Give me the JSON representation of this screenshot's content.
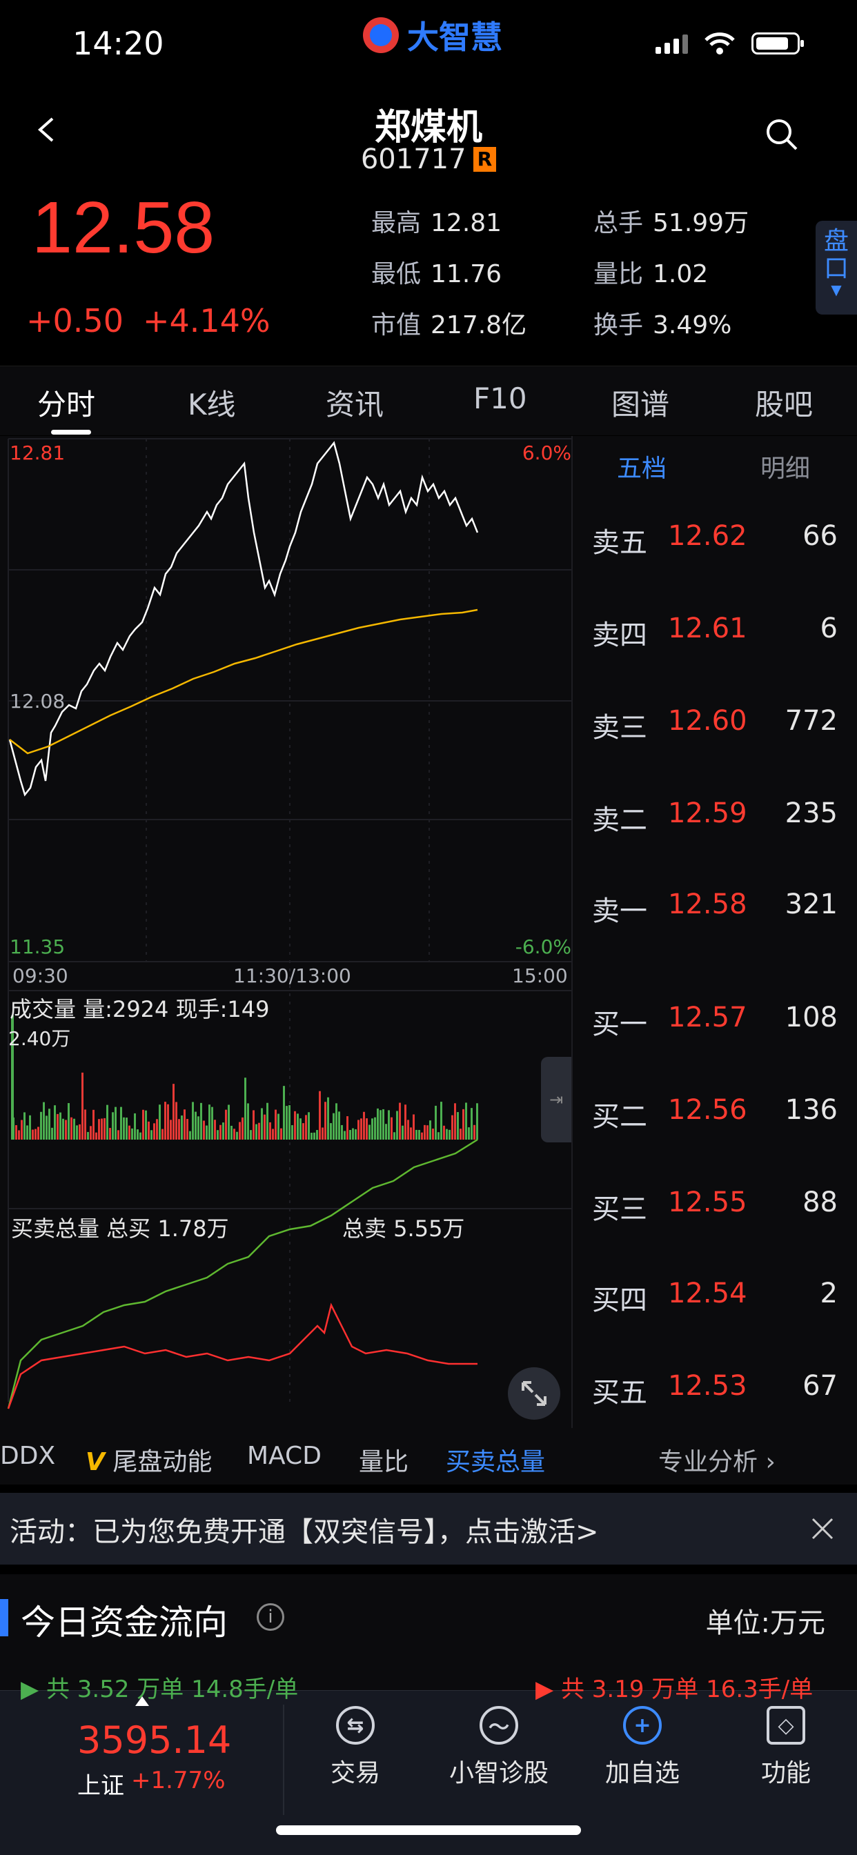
{
  "status": {
    "time": "14:20",
    "logo_text": "大智慧"
  },
  "stock": {
    "name": "郑煤机",
    "code": "601717",
    "badge": "R"
  },
  "quote": {
    "price": "12.58",
    "change": "+0.50",
    "change_pct": "+4.14%",
    "stats": [
      {
        "label": "最高",
        "value": "12.81"
      },
      {
        "label": "总手",
        "value": "51.99万"
      },
      {
        "label": "最低",
        "value": "11.76"
      },
      {
        "label": "量比",
        "value": "1.02"
      },
      {
        "label": "市值",
        "value": "217.8亿"
      },
      {
        "label": "换手",
        "value": "3.49%"
      }
    ],
    "pankou": "盘口"
  },
  "tabs": [
    "分时",
    "K线",
    "资讯",
    "F10",
    "图谱",
    "股吧"
  ],
  "chart": {
    "price_high": "12.81",
    "pct_high": "6.0%",
    "price_mid": "12.08",
    "price_low": "11.35",
    "pct_low": "-6.0%",
    "time_labels": [
      "09:30",
      "11:30/13:00",
      "15:00"
    ],
    "vol_header": "成交量 量:2924 现手:149",
    "vol_max": "2.40万",
    "bs_left": "买卖总量 总买 1.78万",
    "bs_right": "总卖 5.55万"
  },
  "orderbook": {
    "tabs": [
      "五档",
      "明细"
    ],
    "asks": [
      {
        "label": "卖五",
        "price": "12.62",
        "qty": "66"
      },
      {
        "label": "卖四",
        "price": "12.61",
        "qty": "6"
      },
      {
        "label": "卖三",
        "price": "12.60",
        "qty": "772"
      },
      {
        "label": "卖二",
        "price": "12.59",
        "qty": "235"
      },
      {
        "label": "卖一",
        "price": "12.58",
        "qty": "321"
      }
    ],
    "bids": [
      {
        "label": "买一",
        "price": "12.57",
        "qty": "108"
      },
      {
        "label": "买二",
        "price": "12.56",
        "qty": "136"
      },
      {
        "label": "买三",
        "price": "12.55",
        "qty": "88"
      },
      {
        "label": "买四",
        "price": "12.54",
        "qty": "2"
      },
      {
        "label": "买五",
        "price": "12.53",
        "qty": "67"
      }
    ]
  },
  "indicators": [
    "DDX",
    "尾盘动能",
    "MACD",
    "量比",
    "买卖总量"
  ],
  "indicator_v": "V",
  "pro_analysis": "专业分析 ›",
  "banner": {
    "text": "活动：已为您免费开通【双突信号】，点击激活>"
  },
  "flow": {
    "title": "今日资金流向",
    "unit": "单位:万元",
    "peek_left": "▶ 共 3.52 万单  14.8手/单",
    "peek_right": "▶ 共 3.19 万单  16.3手/单"
  },
  "index": {
    "value": "3595.14",
    "name": "上证",
    "pct": "+1.77%"
  },
  "nav": [
    {
      "label": "交易",
      "icon": "trade-icon"
    },
    {
      "label": "小智诊股",
      "icon": "diagnose-icon"
    },
    {
      "label": "加自选",
      "icon": "add-watchlist-icon"
    },
    {
      "label": "功能",
      "icon": "function-cube-icon"
    }
  ],
  "colors": {
    "up": "#ff3b30",
    "accent": "#3d8bff",
    "avg_line": "#f5b800",
    "buy_line": "#5fb830",
    "sell_line": "#ff3030"
  }
}
